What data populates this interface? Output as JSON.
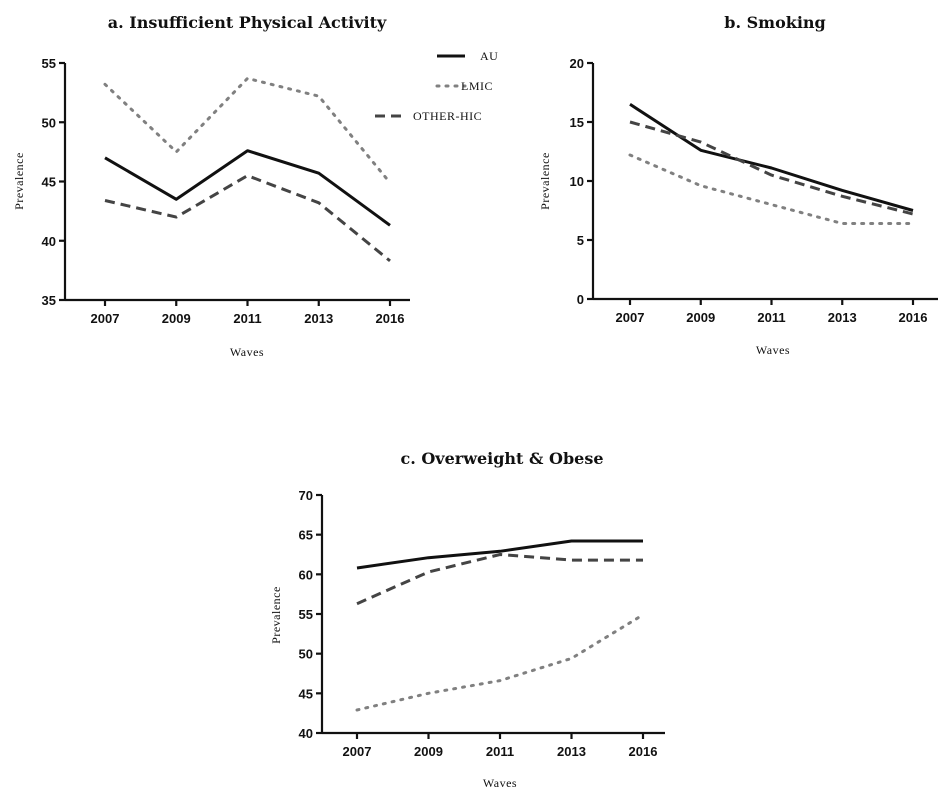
{
  "legend": {
    "placement": "top-right of panel a",
    "items": [
      {
        "label": "AU",
        "style": "solid",
        "color": "#111111"
      },
      {
        "label": "LMIC",
        "style": "dotted",
        "color": "#808080"
      },
      {
        "label": "OTHER-HIC",
        "style": "dashed",
        "color": "#444444"
      }
    ]
  },
  "chart_data": [
    {
      "type": "line",
      "title": "a. Insufficient Physical Activity",
      "xlabel": "Waves",
      "ylabel": "Prevalence",
      "categories": [
        "2007",
        "2009",
        "2011",
        "2013",
        "2016"
      ],
      "ylim": [
        35,
        55
      ],
      "yticks": [
        35,
        40,
        45,
        50,
        55
      ],
      "grid": false,
      "series": [
        {
          "name": "AU",
          "values": [
            47.0,
            43.5,
            47.6,
            45.7,
            41.3
          ]
        },
        {
          "name": "LMIC",
          "values": [
            53.2,
            47.5,
            53.7,
            52.2,
            44.9
          ]
        },
        {
          "name": "OTHER-HIC",
          "values": [
            43.4,
            42.0,
            45.5,
            43.2,
            38.3
          ]
        }
      ]
    },
    {
      "type": "line",
      "title": "b. Smoking",
      "xlabel": "Waves",
      "ylabel": "Prevalence",
      "categories": [
        "2007",
        "2009",
        "2011",
        "2013",
        "2016"
      ],
      "ylim": [
        0,
        20
      ],
      "yticks": [
        0,
        5,
        10,
        15,
        20
      ],
      "grid": false,
      "series": [
        {
          "name": "AU",
          "values": [
            16.5,
            12.6,
            11.1,
            9.2,
            7.5
          ]
        },
        {
          "name": "LMIC",
          "values": [
            12.2,
            9.6,
            8.0,
            6.4,
            6.4
          ]
        },
        {
          "name": "OTHER-HIC",
          "values": [
            15.0,
            13.3,
            10.5,
            8.7,
            7.2
          ]
        }
      ]
    },
    {
      "type": "line",
      "title": "c. Overweight & Obese",
      "xlabel": "Waves",
      "ylabel": "Prevalence",
      "categories": [
        "2007",
        "2009",
        "2011",
        "2013",
        "2016"
      ],
      "ylim": [
        40,
        70
      ],
      "yticks": [
        40,
        45,
        50,
        55,
        60,
        65,
        70
      ],
      "grid": false,
      "series": [
        {
          "name": "AU",
          "values": [
            60.8,
            62.1,
            62.9,
            64.2,
            64.2
          ]
        },
        {
          "name": "LMIC",
          "values": [
            42.9,
            45.0,
            46.6,
            49.4,
            54.9
          ]
        },
        {
          "name": "OTHER-HIC",
          "values": [
            56.3,
            60.3,
            62.5,
            61.8,
            61.8
          ]
        }
      ]
    }
  ]
}
